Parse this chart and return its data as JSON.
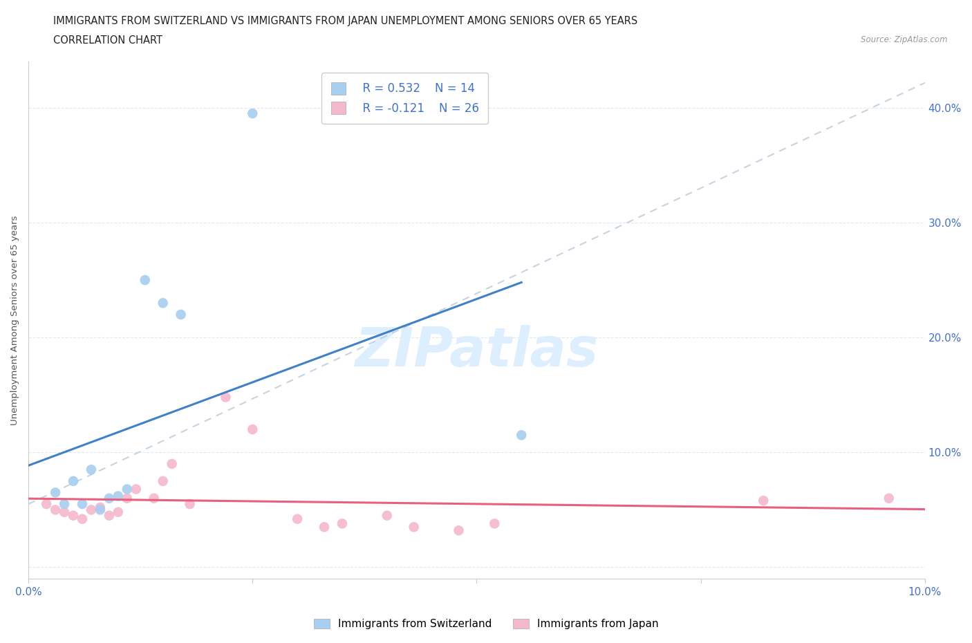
{
  "title_line1": "IMMIGRANTS FROM SWITZERLAND VS IMMIGRANTS FROM JAPAN UNEMPLOYMENT AMONG SENIORS OVER 65 YEARS",
  "title_line2": "CORRELATION CHART",
  "source_text": "Source: ZipAtlas.com",
  "ylabel": "Unemployment Among Seniors over 65 years",
  "xlim": [
    0,
    0.1
  ],
  "ylim": [
    -0.01,
    0.44
  ],
  "yticks": [
    0.0,
    0.1,
    0.2,
    0.3,
    0.4
  ],
  "ytick_labels": [
    "",
    "10.0%",
    "20.0%",
    "30.0%",
    "40.0%"
  ],
  "xticks": [
    0.0,
    0.025,
    0.05,
    0.075,
    0.1
  ],
  "xtick_labels": [
    "0.0%",
    "",
    "",
    "",
    "10.0%"
  ],
  "switzerland_color": "#a8cef0",
  "japan_color": "#f4b8cc",
  "switzerland_line_color": "#4080c8",
  "japan_line_color": "#e86080",
  "ref_line_color": "#bbccdd",
  "watermark_color": "#ddeeff",
  "legend_R_switzerland": "R = 0.532",
  "legend_N_switzerland": "N = 14",
  "legend_R_japan": "R = -0.121",
  "legend_N_japan": "N = 26",
  "legend_label_switzerland": "Immigrants from Switzerland",
  "legend_label_japan": "Immigrants from Japan",
  "switzerland_x": [
    0.003,
    0.004,
    0.005,
    0.006,
    0.007,
    0.008,
    0.009,
    0.01,
    0.011,
    0.013,
    0.015,
    0.017,
    0.025,
    0.055
  ],
  "switzerland_y": [
    0.065,
    0.055,
    0.075,
    0.055,
    0.085,
    0.05,
    0.06,
    0.062,
    0.068,
    0.25,
    0.23,
    0.22,
    0.395,
    0.115
  ],
  "japan_x": [
    0.002,
    0.003,
    0.004,
    0.005,
    0.006,
    0.007,
    0.008,
    0.009,
    0.01,
    0.011,
    0.012,
    0.014,
    0.015,
    0.016,
    0.018,
    0.022,
    0.025,
    0.03,
    0.033,
    0.035,
    0.04,
    0.043,
    0.048,
    0.052,
    0.082,
    0.096
  ],
  "japan_y": [
    0.055,
    0.05,
    0.048,
    0.045,
    0.042,
    0.05,
    0.052,
    0.045,
    0.048,
    0.06,
    0.068,
    0.06,
    0.075,
    0.09,
    0.055,
    0.148,
    0.12,
    0.042,
    0.035,
    0.038,
    0.045,
    0.035,
    0.032,
    0.038,
    0.058,
    0.06
  ],
  "background_color": "#ffffff",
  "grid_color": "#e0e8f0",
  "title_fontsize": 11,
  "tick_color": "#4472c4",
  "axis_label_fontsize": 10,
  "marker_size": 110
}
